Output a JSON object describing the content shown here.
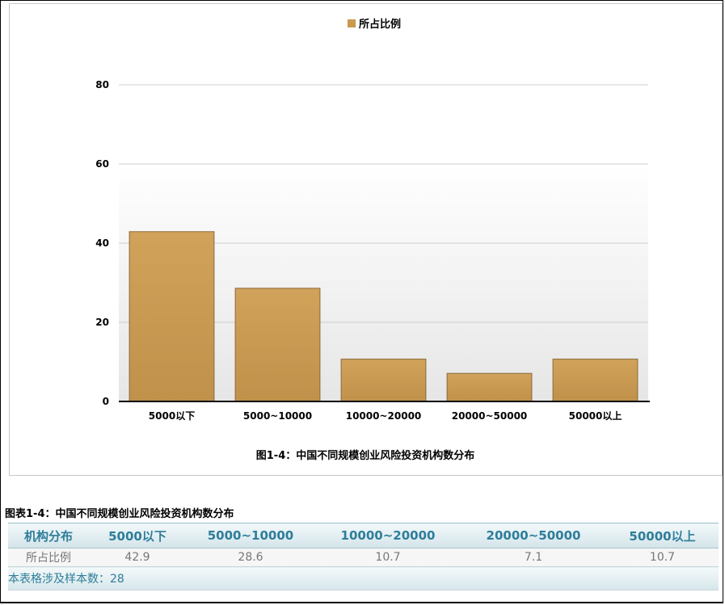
{
  "chart_data": {
    "type": "bar",
    "legend": {
      "label": "所占比例",
      "position": "top-center"
    },
    "categories": [
      "5000以下",
      "5000~10000",
      "10000~20000",
      "20000~50000",
      "50000以上"
    ],
    "series": [
      {
        "name": "所占比例",
        "values": [
          42.9,
          28.6,
          10.7,
          7.1,
          10.7
        ]
      }
    ],
    "ylim": [
      0,
      80
    ],
    "yticks": [
      0,
      20,
      40,
      60,
      80
    ],
    "title": "图1-4：中国不同规模创业风险投资机构数分布",
    "bar_color": "#c99a4f",
    "grid": true
  },
  "table": {
    "title": "图表1-4：中国不同规模创业风险投资机构数分布",
    "headers": [
      "机构分布",
      "5000以下",
      "5000~10000",
      "10000~20000",
      "20000~50000",
      "50000以上"
    ],
    "row_label": "所占比例",
    "values": [
      "42.9",
      "28.6",
      "10.7",
      "7.1",
      "10.7"
    ],
    "footnote": "本表格涉及样本数：28"
  }
}
